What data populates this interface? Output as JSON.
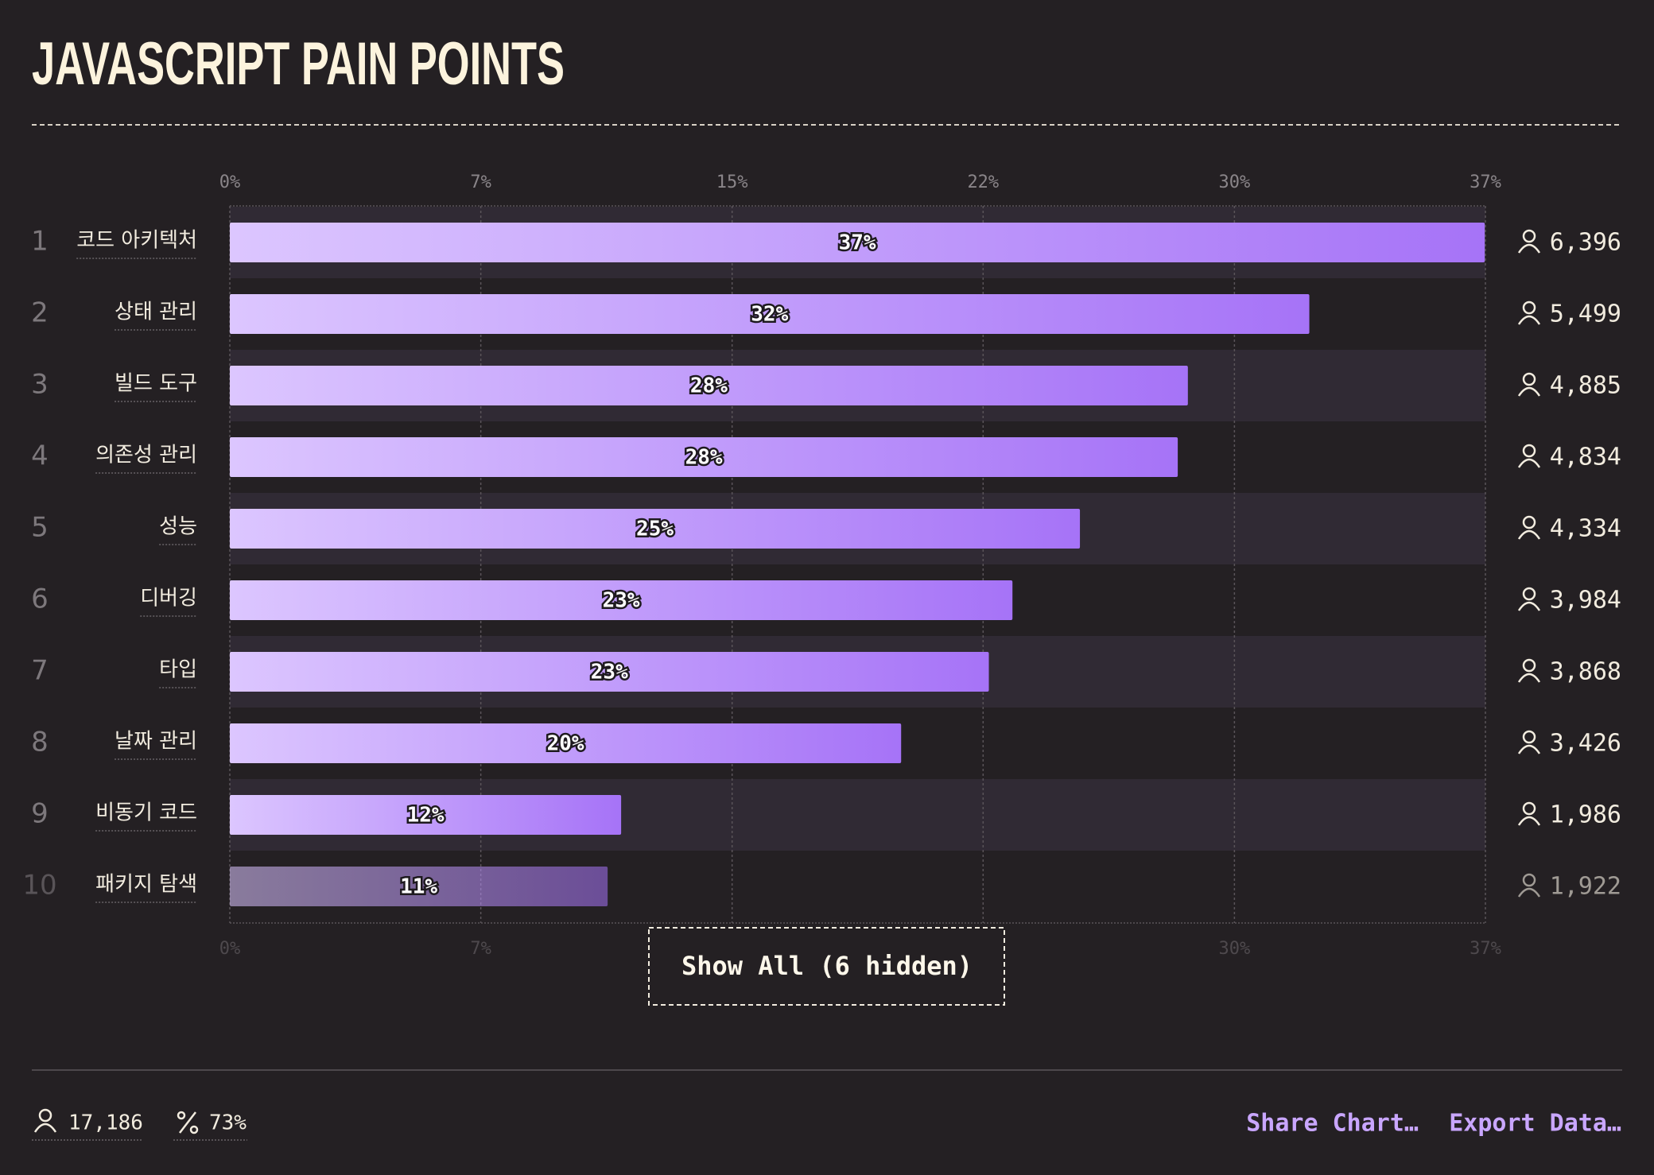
{
  "chart_data": {
    "type": "bar",
    "orientation": "horizontal",
    "title": "JAVASCRIPT PAIN POINTS",
    "ranks": [
      1,
      2,
      3,
      4,
      5,
      6,
      7,
      8,
      9,
      10
    ],
    "categories": [
      "코드 아키텍처",
      "상태 관리",
      "빌드 도구",
      "의존성 관리",
      "성능",
      "디버깅",
      "타입",
      "날짜 관리",
      "비동기 코드",
      "패키지 탐색"
    ],
    "values": [
      37.2,
      32.0,
      28.4,
      28.1,
      25.2,
      23.2,
      22.5,
      19.9,
      11.6,
      11.2
    ],
    "value_labels": [
      "37%",
      "32%",
      "28%",
      "28%",
      "25%",
      "23%",
      "23%",
      "20%",
      "12%",
      "11%"
    ],
    "counts": [
      "6,396",
      "5,499",
      "4,885",
      "4,834",
      "4,334",
      "3,984",
      "3,868",
      "3,426",
      "1,986",
      "1,922"
    ],
    "color": "#a673f7",
    "xlim": [
      0,
      37.22
    ],
    "xticks": [
      {
        "value": 0,
        "label": "0%"
      },
      {
        "value": 7.44,
        "label": "7%"
      },
      {
        "value": 14.89,
        "label": "15%"
      },
      {
        "value": 22.33,
        "label": "22%"
      },
      {
        "value": 29.78,
        "label": "30%"
      },
      {
        "value": 37.22,
        "label": "37%"
      }
    ],
    "grid": true,
    "button": "Show All (6 hidden)",
    "footer": {
      "respondents": "17,186",
      "completion": "73%",
      "share": "Share Chart…",
      "export": "Export Data…"
    }
  }
}
